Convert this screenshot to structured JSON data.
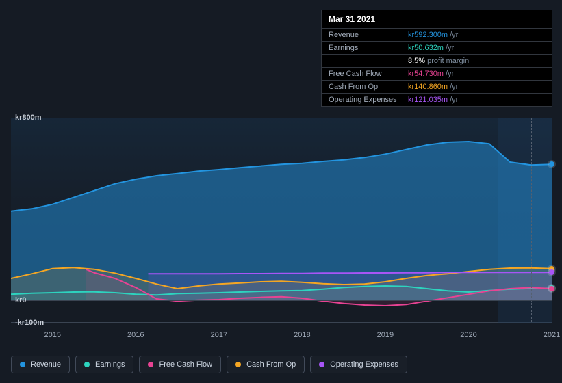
{
  "chart": {
    "type": "area",
    "background_color": "#151b24",
    "plot_gradient_top": "#183048",
    "plot_gradient_bottom": "#151b24",
    "grid_color": "#3a4452",
    "text_color": "#c7cdd6",
    "x_axis": {
      "labels": [
        "2015",
        "2016",
        "2017",
        "2018",
        "2019",
        "2020",
        "2021"
      ],
      "fontsize": 11
    },
    "y_axis": {
      "labels": [
        {
          "text": "kr800m",
          "value": 800
        },
        {
          "text": "kr0",
          "value": 0
        },
        {
          "text": "-kr100m",
          "value": -100
        }
      ],
      "min": -100,
      "max": 800,
      "fontsize": 11
    },
    "hover_x": 6.25,
    "series": [
      {
        "name": "Revenue",
        "color": "#2394df",
        "fill_top": "#1a3d5a",
        "fill_opacity": 0.5,
        "line_width": 2,
        "data": [
          [
            0,
            390
          ],
          [
            0.25,
            400
          ],
          [
            0.5,
            420
          ],
          [
            0.75,
            450
          ],
          [
            1,
            480
          ],
          [
            1.25,
            510
          ],
          [
            1.5,
            530
          ],
          [
            1.75,
            545
          ],
          [
            2,
            555
          ],
          [
            2.25,
            565
          ],
          [
            2.5,
            572
          ],
          [
            2.75,
            580
          ],
          [
            3,
            588
          ],
          [
            3.25,
            595
          ],
          [
            3.5,
            600
          ],
          [
            3.75,
            608
          ],
          [
            4,
            615
          ],
          [
            4.25,
            625
          ],
          [
            4.5,
            640
          ],
          [
            4.75,
            660
          ],
          [
            5,
            680
          ],
          [
            5.25,
            692
          ],
          [
            5.5,
            695
          ],
          [
            5.75,
            685
          ],
          [
            6,
            605
          ],
          [
            6.25,
            592.3
          ],
          [
            6.5,
            595
          ]
        ]
      },
      {
        "name": "Earnings",
        "color": "#2dd4bf",
        "fill_opacity": 0.12,
        "line_width": 2,
        "data": [
          [
            0,
            25
          ],
          [
            0.25,
            30
          ],
          [
            0.5,
            32
          ],
          [
            0.75,
            35
          ],
          [
            1,
            36
          ],
          [
            1.25,
            32
          ],
          [
            1.5,
            25
          ],
          [
            1.75,
            22
          ],
          [
            2,
            28
          ],
          [
            2.25,
            30
          ],
          [
            2.5,
            32
          ],
          [
            2.75,
            35
          ],
          [
            3,
            38
          ],
          [
            3.25,
            40
          ],
          [
            3.5,
            42
          ],
          [
            3.75,
            48
          ],
          [
            4,
            55
          ],
          [
            4.25,
            60
          ],
          [
            4.5,
            62
          ],
          [
            4.75,
            60
          ],
          [
            5,
            50
          ],
          [
            5.25,
            40
          ],
          [
            5.5,
            35
          ],
          [
            5.75,
            42
          ],
          [
            6,
            48
          ],
          [
            6.25,
            50.632
          ],
          [
            6.5,
            52
          ]
        ]
      },
      {
        "name": "Free Cash Flow",
        "color": "#e84393",
        "fill_opacity": 0.12,
        "line_width": 2,
        "data": [
          [
            0.9,
            135
          ],
          [
            1,
            120
          ],
          [
            1.25,
            95
          ],
          [
            1.5,
            55
          ],
          [
            1.75,
            5
          ],
          [
            2,
            -5
          ],
          [
            2,
            -5
          ],
          [
            2.25,
            0
          ],
          [
            2.5,
            2
          ],
          [
            2.75,
            8
          ],
          [
            3,
            12
          ],
          [
            3.25,
            15
          ],
          [
            3.5,
            8
          ],
          [
            3.75,
            -5
          ],
          [
            4,
            -15
          ],
          [
            4.25,
            -22
          ],
          [
            4.5,
            -25
          ],
          [
            4.75,
            -20
          ],
          [
            5,
            -5
          ],
          [
            5.25,
            10
          ],
          [
            5.5,
            25
          ],
          [
            5.75,
            40
          ],
          [
            6,
            50
          ],
          [
            6.25,
            54.73
          ],
          [
            6.5,
            50
          ]
        ]
      },
      {
        "name": "Cash From Op",
        "color": "#f5a623",
        "fill_opacity": 0.15,
        "line_width": 2,
        "data": [
          [
            0,
            95
          ],
          [
            0.25,
            115
          ],
          [
            0.5,
            138
          ],
          [
            0.75,
            142
          ],
          [
            1,
            135
          ],
          [
            1.25,
            118
          ],
          [
            1.5,
            95
          ],
          [
            1.75,
            70
          ],
          [
            2,
            50
          ],
          [
            2.25,
            62
          ],
          [
            2.5,
            70
          ],
          [
            2.75,
            75
          ],
          [
            3,
            80
          ],
          [
            3.25,
            82
          ],
          [
            3.5,
            78
          ],
          [
            3.75,
            72
          ],
          [
            4,
            68
          ],
          [
            4.25,
            70
          ],
          [
            4.5,
            80
          ],
          [
            4.75,
            95
          ],
          [
            5,
            108
          ],
          [
            5.25,
            115
          ],
          [
            5.5,
            125
          ],
          [
            5.75,
            135
          ],
          [
            6,
            140
          ],
          [
            6.25,
            140.86
          ],
          [
            6.5,
            138
          ]
        ]
      },
      {
        "name": "Operating Expenses",
        "color": "#a855f7",
        "fill_opacity": 0.12,
        "line_width": 2,
        "data": [
          [
            1.65,
            115
          ],
          [
            1.75,
            115
          ],
          [
            2,
            115
          ],
          [
            2.25,
            115
          ],
          [
            2.5,
            115
          ],
          [
            2.75,
            116
          ],
          [
            3,
            116
          ],
          [
            3.25,
            117
          ],
          [
            3.5,
            117
          ],
          [
            3.75,
            118
          ],
          [
            4,
            118
          ],
          [
            4.25,
            119
          ],
          [
            4.5,
            119
          ],
          [
            4.75,
            120
          ],
          [
            5,
            120
          ],
          [
            5.25,
            121
          ],
          [
            5.5,
            121
          ],
          [
            5.75,
            121
          ],
          [
            6,
            121
          ],
          [
            6.25,
            121.035
          ],
          [
            6.5,
            121
          ]
        ]
      }
    ]
  },
  "tooltip": {
    "date": "Mar 31 2021",
    "rows": [
      {
        "label": "Revenue",
        "value": "kr592.300m",
        "suffix": "/yr",
        "color": "#2394df"
      },
      {
        "label": "Earnings",
        "value": "kr50.632m",
        "suffix": "/yr",
        "color": "#2dd4bf"
      },
      {
        "label": "",
        "value": "8.5%",
        "suffix": "profit margin",
        "color": "#ffffff"
      },
      {
        "label": "Free Cash Flow",
        "value": "kr54.730m",
        "suffix": "/yr",
        "color": "#e84393"
      },
      {
        "label": "Cash From Op",
        "value": "kr140.860m",
        "suffix": "/yr",
        "color": "#f5a623"
      },
      {
        "label": "Operating Expenses",
        "value": "kr121.035m",
        "suffix": "/yr",
        "color": "#a855f7"
      }
    ]
  },
  "legend": {
    "items": [
      {
        "label": "Revenue",
        "color": "#2394df"
      },
      {
        "label": "Earnings",
        "color": "#2dd4bf"
      },
      {
        "label": "Free Cash Flow",
        "color": "#e84393"
      },
      {
        "label": "Cash From Op",
        "color": "#f5a623"
      },
      {
        "label": "Operating Expenses",
        "color": "#a855f7"
      }
    ]
  }
}
